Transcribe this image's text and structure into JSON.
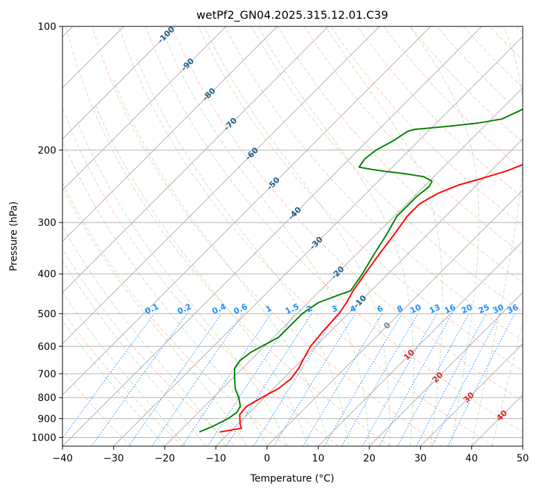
{
  "chart_data": {
    "type": "line",
    "title": "wetPf2_GN04.2025.315.12.01.C39",
    "xlabel": "Temperature (°C)",
    "ylabel": "Pressure (hPa)",
    "xlim": [
      -40,
      50
    ],
    "ylim": [
      1050,
      100
    ],
    "yscale": "log",
    "grid": true,
    "x_ticks": [
      -40,
      -30,
      -20,
      -10,
      0,
      10,
      20,
      30,
      40,
      50
    ],
    "x_tick_labels": [
      "−40",
      "−30",
      "−20",
      "−10",
      "0",
      "10",
      "20",
      "30",
      "40",
      "50"
    ],
    "y_ticks": [
      1000,
      900,
      800,
      700,
      600,
      500,
      400,
      300,
      200,
      100
    ],
    "y_tick_labels": [
      "1000",
      "900",
      "800",
      "700",
      "600",
      "500",
      "400",
      "300",
      "200",
      "100"
    ],
    "series": [
      {
        "role": "temperature",
        "color": "#ff0000",
        "points": [
          {
            "p": 970,
            "t": -12.0
          },
          {
            "p": 950,
            "t": -8.5
          },
          {
            "p": 930,
            "t": -9.5
          },
          {
            "p": 880,
            "t": -11.5
          },
          {
            "p": 840,
            "t": -11.8
          },
          {
            "p": 800,
            "t": -10.5
          },
          {
            "p": 760,
            "t": -9.0
          },
          {
            "p": 720,
            "t": -8.5
          },
          {
            "p": 680,
            "t": -9.0
          },
          {
            "p": 640,
            "t": -10.0
          },
          {
            "p": 600,
            "t": -11.0
          },
          {
            "p": 550,
            "t": -11.5
          },
          {
            "p": 500,
            "t": -11.8
          },
          {
            "p": 470,
            "t": -12.5
          },
          {
            "p": 440,
            "t": -13.5
          },
          {
            "p": 400,
            "t": -14.5
          },
          {
            "p": 360,
            "t": -15.5
          },
          {
            "p": 320,
            "t": -16.5
          },
          {
            "p": 290,
            "t": -17.5
          },
          {
            "p": 270,
            "t": -17.5
          },
          {
            "p": 255,
            "t": -16.0
          },
          {
            "p": 243,
            "t": -13.5
          },
          {
            "p": 235,
            "t": -10.5
          },
          {
            "p": 225,
            "t": -7.0
          },
          {
            "p": 215,
            "t": -4.5
          },
          {
            "p": 200,
            "t": -2.5
          },
          {
            "p": 180,
            "t": -1.0
          },
          {
            "p": 160,
            "t": -0.5
          },
          {
            "p": 140,
            "t": -1.5
          },
          {
            "p": 125,
            "t": -3.5
          },
          {
            "p": 110,
            "t": -6.5
          },
          {
            "p": 100,
            "t": -9.0
          }
        ]
      },
      {
        "role": "dewpoint",
        "color": "#008000",
        "points": [
          {
            "p": 970,
            "t": -16.0
          },
          {
            "p": 940,
            "t": -14.5
          },
          {
            "p": 900,
            "t": -13.0
          },
          {
            "p": 870,
            "t": -12.5
          },
          {
            "p": 840,
            "t": -13.0
          },
          {
            "p": 800,
            "t": -15.0
          },
          {
            "p": 760,
            "t": -17.5
          },
          {
            "p": 720,
            "t": -19.5
          },
          {
            "p": 680,
            "t": -21.5
          },
          {
            "p": 650,
            "t": -22.0
          },
          {
            "p": 620,
            "t": -21.5
          },
          {
            "p": 600,
            "t": -20.5
          },
          {
            "p": 570,
            "t": -19.0
          },
          {
            "p": 530,
            "t": -19.0
          },
          {
            "p": 500,
            "t": -19.0
          },
          {
            "p": 470,
            "t": -18.0
          },
          {
            "p": 450,
            "t": -15.5
          },
          {
            "p": 440,
            "t": -14.0
          },
          {
            "p": 400,
            "t": -15.0
          },
          {
            "p": 360,
            "t": -16.5
          },
          {
            "p": 320,
            "t": -18.0
          },
          {
            "p": 290,
            "t": -19.5
          },
          {
            "p": 280,
            "t": -19.5
          },
          {
            "p": 260,
            "t": -19.5
          },
          {
            "p": 245,
            "t": -19.0
          },
          {
            "p": 238,
            "t": -19.5
          },
          {
            "p": 232,
            "t": -22.0
          },
          {
            "p": 228,
            "t": -26.5
          },
          {
            "p": 225,
            "t": -31.0
          },
          {
            "p": 222,
            "t": -34.5
          },
          {
            "p": 220,
            "t": -36.5
          },
          {
            "p": 210,
            "t": -37.0
          },
          {
            "p": 200,
            "t": -36.5
          },
          {
            "p": 190,
            "t": -35.0
          },
          {
            "p": 180,
            "t": -34.0
          },
          {
            "p": 178,
            "t": -33.0
          },
          {
            "p": 177,
            "t": -31.0
          },
          {
            "p": 175,
            "t": -27.0
          },
          {
            "p": 172,
            "t": -22.0
          },
          {
            "p": 168,
            "t": -18.0
          },
          {
            "p": 160,
            "t": -16.0
          },
          {
            "p": 150,
            "t": -15.0
          },
          {
            "p": 140,
            "t": -15.0
          },
          {
            "p": 130,
            "t": -15.5
          },
          {
            "p": 120,
            "t": -16.5
          },
          {
            "p": 110,
            "t": -17.5
          },
          {
            "p": 100,
            "t": -19.0
          }
        ]
      }
    ],
    "isotherm_labels": [
      {
        "t": -100,
        "text": "-100"
      },
      {
        "t": -90,
        "text": "-90"
      },
      {
        "t": -80,
        "text": "-80"
      },
      {
        "t": -70,
        "text": "-70"
      },
      {
        "t": -60,
        "text": "-60"
      },
      {
        "t": -50,
        "text": "-50"
      },
      {
        "t": -40,
        "text": "-40"
      },
      {
        "t": -30,
        "text": "-30"
      },
      {
        "t": -20,
        "text": "-20"
      },
      {
        "t": -10,
        "text": "-10"
      },
      {
        "t": 0,
        "text": "0"
      },
      {
        "t": 10,
        "text": "10"
      },
      {
        "t": 20,
        "text": "20"
      },
      {
        "t": 30,
        "text": "30"
      },
      {
        "t": 40,
        "text": "40"
      }
    ],
    "mixing_ratio_labels": [
      "0.1",
      "0.2",
      "0.4",
      "0.6",
      "1",
      "1.5",
      "2",
      "3",
      "4",
      "6",
      "8",
      "10",
      "13",
      "16",
      "20",
      "25",
      "30",
      "36"
    ],
    "colors": {
      "temperature": "#ff0000",
      "dewpoint": "#008000",
      "isotherm_cold": "#1f5f8b",
      "isotherm_warm": "#d62728",
      "isotherm_zero": "#808080",
      "mixing_ratio": "#1e90ff",
      "dry_adiabat": "#ff7f50",
      "moist_adiabat": "#2ca02c",
      "grid": "#b0b0b0"
    }
  }
}
